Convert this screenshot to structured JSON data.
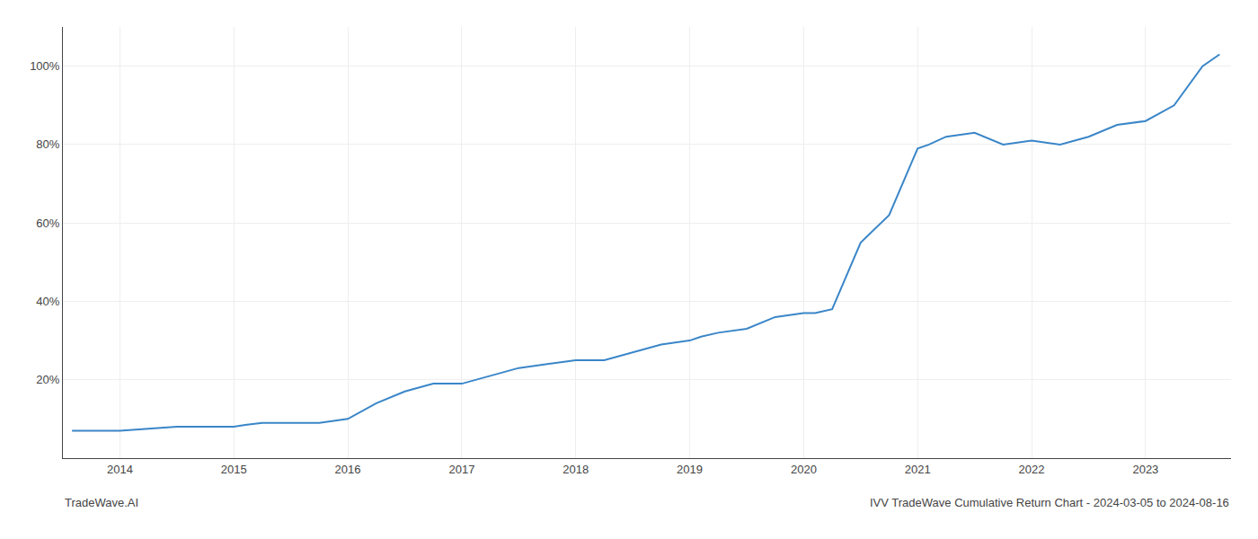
{
  "chart_data": {
    "type": "line",
    "title": "IVV TradeWave Cumulative Return Chart - 2024-03-05 to 2024-08-16",
    "annotations": [
      "TradeWave.AI"
    ],
    "color": "#3a86c8",
    "grid": true,
    "x": [
      2013.58,
      2013.75,
      2014.0,
      2014.25,
      2014.5,
      2014.75,
      2015.0,
      2015.1,
      2015.25,
      2015.5,
      2015.75,
      2016.0,
      2016.25,
      2016.5,
      2016.75,
      2017.0,
      2017.25,
      2017.5,
      2017.75,
      2018.0,
      2018.25,
      2018.5,
      2018.75,
      2019.0,
      2019.1,
      2019.25,
      2019.5,
      2019.75,
      2020.0,
      2020.1,
      2020.25,
      2020.5,
      2020.75,
      2021.0,
      2021.1,
      2021.25,
      2021.5,
      2021.75,
      2022.0,
      2022.25,
      2022.5,
      2022.75,
      2023.0,
      2023.25,
      2023.5,
      2023.65
    ],
    "values": [
      7,
      7,
      7,
      7.5,
      8,
      8,
      8,
      8.5,
      9,
      9,
      9,
      10,
      14,
      17,
      19,
      19,
      21,
      23,
      24,
      25,
      25,
      27,
      29,
      30,
      31,
      32,
      33,
      36,
      37,
      37,
      38,
      55,
      62,
      79,
      80,
      82,
      83,
      80,
      81,
      80,
      82,
      85,
      86,
      90,
      100,
      103
    ],
    "xlim": [
      2013.5,
      2023.75
    ],
    "xticks": [
      2014,
      2015,
      2016,
      2017,
      2018,
      2019,
      2020,
      2021,
      2022,
      2023
    ],
    "ylim": [
      0,
      110
    ],
    "yticks": [
      {
        "value": 20,
        "label": "20%"
      },
      {
        "value": 40,
        "label": "40%"
      },
      {
        "value": 60,
        "label": "60%"
      },
      {
        "value": 80,
        "label": "80%"
      },
      {
        "value": 100,
        "label": "100%"
      }
    ]
  }
}
